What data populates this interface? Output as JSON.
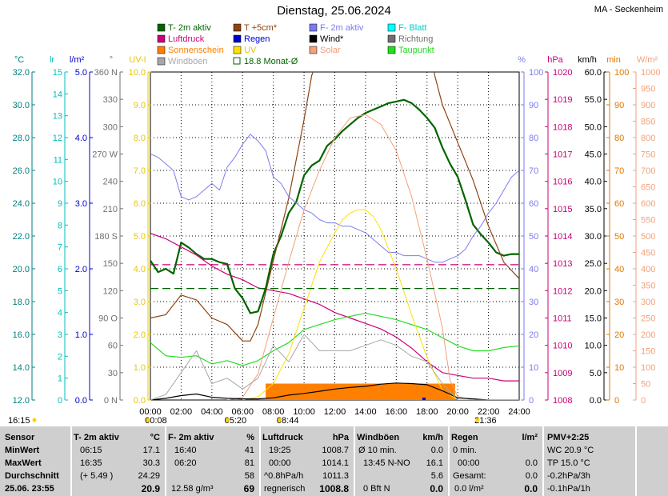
{
  "header": {
    "title": "Dienstag, 25.06.2024",
    "station": "MA - Seckenheim"
  },
  "colors": {
    "t2m": "#006400",
    "t5cm": "#8B4513",
    "f2m": "#7B7BEF",
    "fblatt": "#00FFFF",
    "luftdruck": "#CC0077",
    "regen": "#0000CC",
    "wind": "#000000",
    "richtung": "#707070",
    "sonnenschein": "#FF8000",
    "uv": "#FFE000",
    "solar": "#F4A07A",
    "taupunkt": "#22DD22",
    "windboeen": "#A8A8A8",
    "monat": "#006400"
  },
  "legend": [
    {
      "key": "t2m",
      "label": "T- 2m aktiv"
    },
    {
      "key": "t5cm",
      "label": "T +5cm*"
    },
    {
      "key": "f2m",
      "label": "F- 2m aktiv"
    },
    {
      "key": "fblatt",
      "label": "F- Blatt"
    },
    {
      "key": "luftdruck",
      "label": "Luftdruck"
    },
    {
      "key": "regen",
      "label": "Regen"
    },
    {
      "key": "wind",
      "label": "Wind*"
    },
    {
      "key": "richtung",
      "label": "Richtung"
    },
    {
      "key": "sonnenschein",
      "label": "Sonnenschein"
    },
    {
      "key": "uv",
      "label": "UV"
    },
    {
      "key": "solar",
      "label": "Solar"
    },
    {
      "key": "taupunkt",
      "label": "Taupunkt"
    },
    {
      "key": "windboeen",
      "label": "Windböen"
    },
    {
      "key": "monat",
      "label": "18.8 Monat-Ø"
    }
  ],
  "axis_units": {
    "temp": "°C",
    "lr": "lr",
    "lm2": "l/m²",
    "deg": "°",
    "uvi": "UV-I",
    "pct": "%",
    "hpa": "hPa",
    "kmh": "km/h",
    "min": "min",
    "wm2": "W/m²"
  },
  "chart_data": {
    "type": "line",
    "x_unit": "hours",
    "x_range": [
      0,
      24
    ],
    "x_ticks": [
      "00:00",
      "02:00",
      "04:00",
      "06:00",
      "08:00",
      "10:00",
      "12:00",
      "14:00",
      "16:00",
      "18:00",
      "20:00",
      "22:00",
      "24:00"
    ],
    "ticks": {
      "temp": [
        "32.0",
        "30.0",
        "28.0",
        "26.0",
        "24.0",
        "22.0",
        "20.0",
        "18.0",
        "16.0",
        "14.0",
        "12.0"
      ],
      "lr": [
        "15",
        "14",
        "13",
        "12",
        "11",
        "10",
        "9",
        "8",
        "7",
        "6",
        "5",
        "4",
        "3",
        "2",
        "1",
        "0"
      ],
      "lm2": [
        "5.0",
        "4.0",
        "3.0",
        "2.0",
        "1.0",
        "0.0"
      ],
      "deg": [
        "360 N",
        "330",
        "300",
        "270 W",
        "240",
        "210",
        "180 S",
        "150",
        "120",
        "90 O",
        "60",
        "30",
        "0 N"
      ],
      "uvi": [
        "10.0",
        "9.0",
        "8.0",
        "7.0",
        "6.0",
        "5.0",
        "4.0",
        "3.0",
        "2.0",
        "1.0",
        "0.0"
      ],
      "pct": [
        "%",
        "100",
        "90",
        "80",
        "70",
        "60",
        "50",
        "40",
        "30",
        "20",
        "10",
        "0"
      ],
      "hpa": [
        "1020",
        "1019",
        "1018",
        "1017",
        "1016",
        "1015",
        "1014",
        "1013",
        "1012",
        "1011",
        "1010",
        "1009",
        "1008"
      ],
      "kmh": [
        "60.0",
        "55.0",
        "50.0",
        "45.0",
        "40.0",
        "35.0",
        "30.0",
        "25.0",
        "20.0",
        "15.0",
        "10.0",
        "5.0",
        "0.0"
      ],
      "min": [
        "100",
        "90",
        "80",
        "70",
        "60",
        "50",
        "40",
        "30",
        "20",
        "10",
        "0"
      ],
      "wm2": [
        "1000",
        "950",
        "900",
        "850",
        "800",
        "750",
        "700",
        "650",
        "600",
        "550",
        "500",
        "450",
        "400",
        "350",
        "300",
        "250",
        "200",
        "150",
        "100",
        "50",
        "0"
      ]
    },
    "series": [
      {
        "key": "t2m",
        "name": "T- 2m aktiv",
        "unit": "°C",
        "axis": [
          12,
          32
        ],
        "x": [
          0,
          0.5,
          1,
          1.5,
          2,
          2.5,
          3,
          3.5,
          4,
          4.5,
          5,
          5.5,
          6,
          6.5,
          7,
          7.5,
          8,
          8.5,
          9,
          9.5,
          10,
          10.5,
          11,
          11.5,
          12,
          12.5,
          13,
          13.5,
          14,
          14.5,
          15,
          15.5,
          16,
          16.5,
          17,
          17.5,
          18,
          18.5,
          19,
          19.5,
          20,
          20.5,
          21,
          21.5,
          22,
          22.5,
          23,
          23.5,
          24
        ],
        "y": [
          20.5,
          19.8,
          20.0,
          19.7,
          21.6,
          21.3,
          20.9,
          20.6,
          20.6,
          20.4,
          20.3,
          18.8,
          18.2,
          17.3,
          17.4,
          18.8,
          20.9,
          22.0,
          23.4,
          24.1,
          25.7,
          26.3,
          26.6,
          27.5,
          27.9,
          28.4,
          28.8,
          29.2,
          29.5,
          29.7,
          29.9,
          30.1,
          30.2,
          30.3,
          30.1,
          29.7,
          29.2,
          28.6,
          27.4,
          26.4,
          25.6,
          24.2,
          22.7,
          22.1,
          21.6,
          21.0,
          20.8,
          20.9,
          20.9
        ]
      },
      {
        "key": "t5cm",
        "name": "T +5cm*",
        "unit": "°C",
        "axis": [
          12,
          32
        ],
        "x": [
          0,
          1,
          2,
          3,
          4,
          5,
          6,
          6.5,
          7,
          8,
          9,
          10,
          10.5,
          11,
          11.5,
          12,
          18,
          18.5,
          19,
          20,
          21,
          22,
          23,
          24
        ],
        "y": [
          17.0,
          17.2,
          18.4,
          18.1,
          17.0,
          16.6,
          15.6,
          15.6,
          16.6,
          20.5,
          24.3,
          29.1,
          31.8,
          33,
          34,
          35,
          35,
          31.8,
          30,
          27.7,
          25.4,
          22.6,
          20.4,
          19.4
        ]
      },
      {
        "key": "f2m",
        "name": "F- 2m aktiv",
        "unit": "%",
        "axis": [
          0,
          100
        ],
        "x": [
          0,
          0.5,
          1,
          1.5,
          2,
          2.5,
          3,
          3.5,
          4,
          4.5,
          5,
          5.5,
          6,
          6.5,
          7,
          7.5,
          8,
          8.5,
          9,
          9.5,
          10,
          10.5,
          11,
          11.5,
          12,
          12.5,
          13,
          13.5,
          14,
          14.5,
          15,
          15.5,
          16,
          16.5,
          17,
          17.5,
          18,
          18.5,
          19,
          19.5,
          20,
          20.5,
          21,
          21.5,
          22,
          22.5,
          23,
          23.5,
          24
        ],
        "y": [
          75,
          74,
          72,
          70,
          62,
          61,
          62,
          64,
          66,
          64,
          71,
          74,
          78,
          81,
          79,
          76,
          68,
          66,
          62,
          60,
          58,
          57,
          55,
          54,
          54,
          53,
          53,
          52,
          51,
          49,
          47,
          45,
          45,
          44,
          44,
          44,
          43,
          42,
          42,
          43,
          44,
          46,
          50,
          53,
          57,
          60,
          64,
          68,
          70
        ]
      },
      {
        "key": "luftdruck",
        "name": "Luftdruck",
        "unit": "hPa",
        "axis": [
          1008,
          1020
        ],
        "x": [
          0,
          1,
          2,
          3,
          4,
          5,
          6,
          7,
          8,
          9,
          10,
          11,
          12,
          13,
          14,
          15,
          16,
          17,
          18,
          19,
          20,
          21,
          22,
          23,
          24
        ],
        "y": [
          1014.1,
          1013.9,
          1013.6,
          1013.3,
          1012.9,
          1012.6,
          1012.4,
          1012.1,
          1012.0,
          1011.9,
          1011.7,
          1011.5,
          1011.2,
          1011.0,
          1010.8,
          1010.6,
          1010.3,
          1009.9,
          1009.4,
          1009.0,
          1008.9,
          1008.8,
          1008.8,
          1008.7,
          1008.7
        ]
      },
      {
        "key": "taupunkt",
        "name": "Taupunkt",
        "unit": "°C",
        "axis": [
          12,
          32
        ],
        "x": [
          0,
          1,
          2,
          3,
          4,
          5,
          6,
          7,
          8,
          9,
          10,
          11,
          12,
          13,
          14,
          15,
          16,
          17,
          18,
          19,
          20,
          21,
          22,
          23,
          24
        ],
        "y": [
          15.5,
          14.7,
          14.6,
          14.7,
          14.2,
          14.4,
          14.1,
          14.4,
          15.0,
          15.5,
          16.3,
          16.6,
          16.9,
          17.1,
          17.3,
          17.1,
          16.9,
          16.6,
          16.3,
          15.8,
          15.3,
          15.0,
          15.0,
          15.2,
          15.3
        ]
      },
      {
        "key": "solar",
        "name": "Solar",
        "unit": "W/m²",
        "axis": [
          0,
          1000
        ],
        "x": [
          5,
          6,
          7,
          8,
          9,
          10,
          11,
          12,
          13,
          14,
          15,
          16,
          17,
          18,
          19,
          19.5,
          20,
          21
        ],
        "y": [
          0,
          8,
          80,
          250,
          420,
          580,
          700,
          800,
          860,
          870,
          840,
          760,
          620,
          430,
          220,
          60,
          10,
          0
        ]
      },
      {
        "key": "uv",
        "name": "UV",
        "unit": "UV-I",
        "axis": [
          0,
          10
        ],
        "x": [
          6,
          7,
          8,
          9,
          10,
          11,
          12,
          12.5,
          13,
          13.5,
          14,
          14.5,
          15,
          16,
          17,
          18,
          19,
          20
        ],
        "y": [
          0,
          0.1,
          0.5,
          1.4,
          2.8,
          4.2,
          5.1,
          5.5,
          5.7,
          5.8,
          5.8,
          5.6,
          5.2,
          4.0,
          2.6,
          1.3,
          0.3,
          0
        ]
      },
      {
        "key": "wind",
        "name": "Wind*",
        "unit": "km/h",
        "axis": [
          0,
          60
        ],
        "x": [
          0,
          1,
          2,
          3,
          4,
          5,
          6,
          7,
          8,
          9,
          10,
          11,
          12,
          13,
          14,
          15,
          16,
          17,
          18,
          19,
          20,
          21,
          22,
          23,
          24
        ],
        "y": [
          0,
          0.3,
          0.8,
          1.1,
          0.5,
          0.3,
          0.2,
          0.2,
          0.4,
          0.9,
          1.2,
          1.6,
          2.0,
          2.3,
          2.5,
          2.9,
          3.1,
          3.0,
          2.8,
          1.7,
          0.4,
          0.2,
          0,
          0,
          0
        ]
      },
      {
        "key": "windboeen",
        "name": "Windböen",
        "unit": "km/h",
        "axis": [
          0,
          60
        ],
        "x": [
          0,
          1,
          2,
          3,
          4,
          5,
          6,
          7,
          8,
          9,
          10,
          11,
          12,
          13,
          14,
          15,
          16,
          17,
          18,
          19,
          20,
          21,
          22,
          23,
          24
        ],
        "y": [
          0,
          1,
          5,
          9,
          3,
          4,
          2,
          4,
          10,
          7,
          12,
          9,
          9,
          9,
          10,
          11,
          10,
          8,
          7,
          3,
          0,
          0,
          0,
          0,
          0
        ]
      },
      {
        "key": "monat",
        "name": "18.8 Monat-Ø",
        "unit": "°C",
        "axis": [
          12,
          32
        ],
        "x": [
          0,
          24
        ],
        "y": [
          18.8,
          18.8
        ]
      }
    ],
    "hlines": [
      {
        "key": "luftdruck",
        "value": 1012.95
      }
    ],
    "sunshine_bars": {
      "x": [
        7.5,
        7.8,
        8.1,
        8.4,
        8.7,
        9.0,
        9.3,
        9.6,
        9.9,
        10.2,
        10.5,
        10.8,
        11.1,
        11.4,
        11.7,
        12.0,
        12.3,
        12.6,
        12.9,
        13.2,
        13.5,
        13.8,
        14.1,
        14.4,
        14.7,
        15.0,
        15.3,
        15.6,
        15.9,
        16.2,
        16.5,
        16.8,
        17.1,
        17.4,
        17.7,
        18.0,
        18.3,
        18.6,
        18.9,
        19.2,
        19.5
      ],
      "minutes": [
        5,
        5,
        5,
        5,
        5,
        5,
        5,
        5,
        5,
        5,
        5,
        5,
        5,
        5,
        5,
        5,
        5,
        5,
        5,
        5,
        5,
        5,
        5,
        5,
        5,
        5,
        5,
        5,
        5,
        5,
        5,
        5,
        5,
        5,
        5,
        5,
        5,
        5,
        5,
        5,
        5
      ]
    },
    "rain_marker": {
      "x": 17.7,
      "value": 0.0
    },
    "sun_events": [
      {
        "label": "00:08",
        "x": 0.15
      },
      {
        "label": "05:20",
        "x": 5.33
      },
      {
        "label": "08:44",
        "x": 8.73
      },
      {
        "label": "21:36",
        "x": 21.6
      }
    ]
  },
  "footer_left": "16:15",
  "stats": {
    "sensor": {
      "h": "Sensor",
      "r1": "MinWert",
      "r2": "MaxWert",
      "r3": "Durchschnitt",
      "r4": "25.06. 23:55"
    },
    "temp": {
      "h": "T- 2m aktiv",
      "u": "°C",
      "rows": [
        [
          "06:15",
          "17.1"
        ],
        [
          "16:35",
          "30.3"
        ],
        [
          "(+ 5.49 )",
          "24.29"
        ],
        [
          "",
          "20.9"
        ]
      ]
    },
    "humid": {
      "h": "F- 2m aktiv",
      "u": "%",
      "rows": [
        [
          "16:40",
          "41"
        ],
        [
          "06:20",
          "81"
        ],
        [
          "",
          "58"
        ],
        [
          "12.58 g/m³",
          "69"
        ]
      ]
    },
    "press": {
      "h": "Luftdruck",
      "u": "hPa",
      "rows": [
        [
          "19:25",
          "1008.7"
        ],
        [
          "00:00",
          "1014.1"
        ],
        [
          "^0.8hPa/h",
          "1011.3"
        ],
        [
          "regnerisch",
          "1008.8"
        ]
      ]
    },
    "wind": {
      "h": "Windböen",
      "u": "km/h",
      "rows": [
        [
          "Ø 10 min.",
          "0.0"
        ],
        [
          "13:45   N-NO",
          "16.1"
        ],
        [
          "",
          "5.6"
        ],
        [
          "0 Bft N",
          "0.0"
        ]
      ]
    },
    "rain": {
      "h": "Regen",
      "u": "l/m²",
      "rows": [
        [
          "0 min.",
          ""
        ],
        [
          "00:00",
          "0.0"
        ],
        [
          "Gesamt:",
          "0.0"
        ],
        [
          "0.0 l/m²",
          "0.0"
        ]
      ]
    },
    "pmv": {
      "h": "PMV+2:25",
      "rows": [
        "WC 20.9 °C",
        "TP 15.0 °C",
        "-0.2hPa/3h",
        "-0.1hPa/1h"
      ]
    }
  }
}
